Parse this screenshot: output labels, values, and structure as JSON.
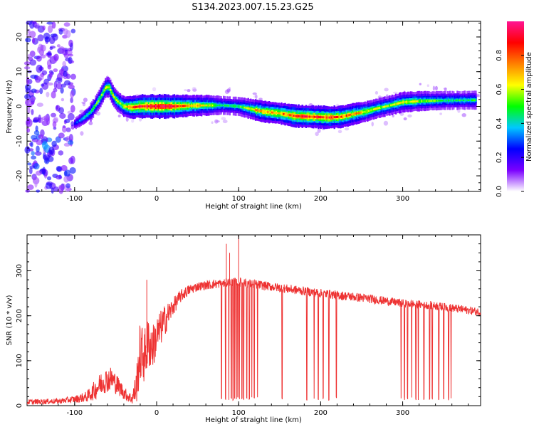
{
  "figure": {
    "title": "S134.2023.007.15.23.G25"
  },
  "chart_data": [
    {
      "id": "spectrogram",
      "type": "heatmap",
      "xlabel": "Height of straight line (km)",
      "ylabel": "Frequency (Hz)",
      "xlim": [
        -158,
        395
      ],
      "ylim": [
        -24.5,
        24.5
      ],
      "xticks": [
        "-100",
        "0",
        "100",
        "200",
        "300"
      ],
      "xtick_values": [
        -100,
        0,
        100,
        200,
        300
      ],
      "yticks": [
        "-20",
        "-10",
        "0",
        "10",
        "20"
      ],
      "ytick_values": [
        -20,
        -10,
        0,
        10,
        20
      ],
      "ridge": {
        "x": [
          -100,
          -90,
          -80,
          -70,
          -62,
          -58,
          -53,
          -48,
          -40,
          -30,
          -20,
          0,
          20,
          40,
          60,
          80,
          100,
          110,
          120,
          130,
          150,
          170,
          190,
          210,
          225,
          240,
          255,
          270,
          285,
          300,
          320,
          350,
          390
        ],
        "y": [
          -5,
          -3.5,
          -1.5,
          2,
          5.5,
          5.5,
          3,
          1.5,
          0,
          -0.3,
          0,
          0,
          0,
          0.2,
          0.3,
          0.3,
          0,
          -0.5,
          -1,
          -1.5,
          -2,
          -2.8,
          -3,
          -3.2,
          -3,
          -2.2,
          -1.5,
          -0.5,
          0.3,
          1.2,
          1.5,
          1.7,
          1.8
        ],
        "amplitude": [
          0.25,
          0.35,
          0.45,
          0.5,
          0.55,
          0.6,
          0.55,
          0.55,
          0.6,
          0.75,
          0.85,
          0.9,
          0.85,
          0.7,
          0.6,
          0.45,
          0.45,
          0.55,
          0.65,
          0.7,
          0.7,
          0.8,
          0.8,
          0.8,
          0.75,
          0.7,
          0.6,
          0.55,
          0.55,
          0.6,
          0.55,
          0.45,
          0.45
        ]
      },
      "noise_region": {
        "x": [
          -158,
          -100
        ],
        "description_level": 0.15
      },
      "colorbar": {
        "label": "Normalized spectral amplitude",
        "ticks": [
          "0.0",
          "0.2",
          "0.4",
          "0.6",
          "0.8"
        ],
        "tick_values": [
          0.0,
          0.2,
          0.4,
          0.6,
          0.8
        ],
        "range": [
          0,
          1
        ],
        "colors": [
          "#ffffff",
          "#7b00ff",
          "#0000ff",
          "#00c8ff",
          "#00ff00",
          "#ffff00",
          "#ff8000",
          "#ff0000",
          "#ff1493"
        ]
      }
    },
    {
      "id": "snr",
      "type": "line",
      "xlabel": "Height of straight line (km)",
      "ylabel": "SNR (10 * v/v)",
      "xlim": [
        -158,
        395
      ],
      "ylim": [
        0,
        380
      ],
      "xticks": [
        "-100",
        "0",
        "100",
        "200",
        "300"
      ],
      "xtick_values": [
        -100,
        0,
        100,
        200,
        300
      ],
      "yticks": [
        "0",
        "100",
        "200",
        "300"
      ],
      "ytick_values": [
        0,
        100,
        200,
        300
      ],
      "line_color": "#ee3333",
      "envelope": {
        "x": [
          -158,
          -120,
          -100,
          -85,
          -75,
          -65,
          -55,
          -45,
          -38,
          -30,
          -25,
          -20,
          -15,
          -10,
          -5,
          0,
          10,
          20,
          30,
          40,
          50,
          60,
          70,
          80,
          90,
          100,
          120,
          150,
          200,
          250,
          300,
          340,
          370,
          395
        ],
        "y": [
          8,
          10,
          14,
          20,
          35,
          55,
          60,
          40,
          25,
          15,
          40,
          120,
          110,
          140,
          130,
          155,
          190,
          220,
          245,
          258,
          265,
          268,
          270,
          272,
          274,
          275,
          270,
          262,
          250,
          240,
          228,
          222,
          215,
          208
        ],
        "noise": [
          6,
          6,
          8,
          12,
          22,
          28,
          28,
          20,
          14,
          12,
          40,
          70,
          60,
          60,
          50,
          45,
          35,
          20,
          14,
          12,
          10,
          10,
          10,
          10,
          10,
          10,
          10,
          10,
          10,
          10,
          9,
          9,
          9,
          9
        ]
      },
      "dropouts_x": [
        79,
        84,
        88,
        91,
        93,
        95,
        97,
        99,
        101,
        104,
        106,
        110,
        113,
        116,
        119,
        123,
        153,
        183,
        192,
        197,
        203,
        210,
        219,
        298,
        302,
        306,
        311,
        316,
        319,
        326,
        333,
        336,
        344,
        350,
        356,
        359
      ],
      "spikes": [
        {
          "x": 85,
          "y": 360
        },
        {
          "x": 89,
          "y": 340
        },
        {
          "x": 100,
          "y": 380
        },
        {
          "x": -12,
          "y": 280
        }
      ]
    }
  ]
}
